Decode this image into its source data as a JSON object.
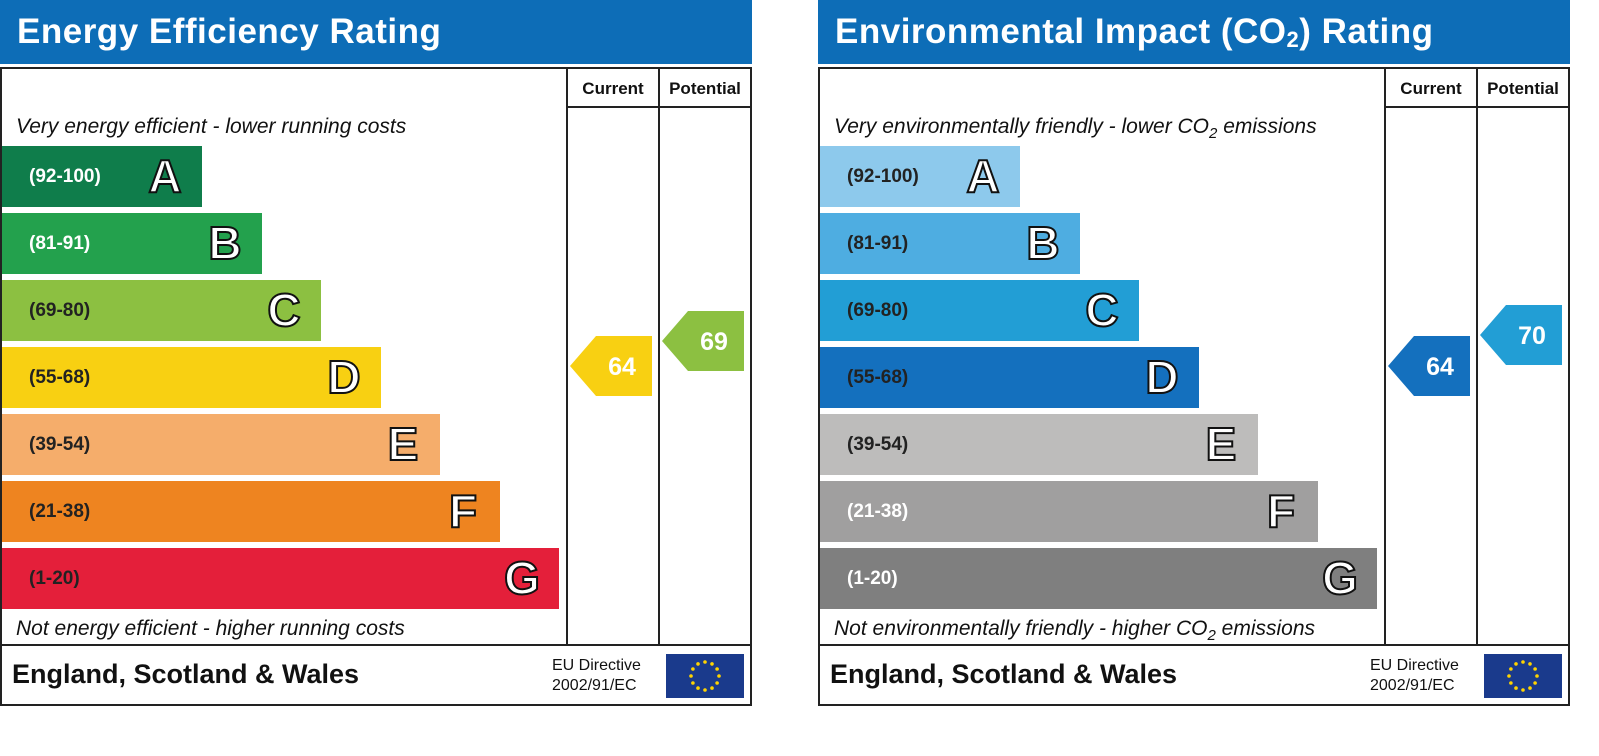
{
  "chart_data": [
    {
      "type": "bar",
      "title": "Energy Efficiency Rating",
      "columns": [
        "Current",
        "Potential"
      ],
      "top_caption": "Very energy efficient - lower running costs",
      "bottom_caption": "Not energy efficient - higher running costs",
      "bands": [
        {
          "letter": "A",
          "range": "(92-100)",
          "color": "#0f7d4b",
          "text_color": "#ffffff"
        },
        {
          "letter": "B",
          "range": "(81-91)",
          "color": "#23a14d",
          "text_color": "#ffffff"
        },
        {
          "letter": "C",
          "range": "(69-80)",
          "color": "#8cc041",
          "text_color": "#222222"
        },
        {
          "letter": "D",
          "range": "(55-68)",
          "color": "#f8d012",
          "text_color": "#222222"
        },
        {
          "letter": "E",
          "range": "(39-54)",
          "color": "#f5ad6b",
          "text_color": "#222222"
        },
        {
          "letter": "F",
          "range": "(21-38)",
          "color": "#ee8420",
          "text_color": "#222222"
        },
        {
          "letter": "G",
          "range": "(1-20)",
          "color": "#e41f3a",
          "text_color": "#222222"
        }
      ],
      "current": {
        "value": 64,
        "color": "#f8d012"
      },
      "potential": {
        "value": 69,
        "color": "#8cc041"
      },
      "footer": "England, Scotland & Wales",
      "directive": [
        "EU Directive",
        "2002/91/EC"
      ]
    },
    {
      "type": "bar",
      "title_parts": [
        "Environmental Impact (CO",
        "2",
        ") Rating"
      ],
      "columns": [
        "Current",
        "Potential"
      ],
      "top_caption_parts": [
        "Very environmentally friendly - lower CO",
        "2",
        " emissions"
      ],
      "bottom_caption_parts": [
        "Not environmentally friendly - higher CO",
        "2",
        " emissions"
      ],
      "bands": [
        {
          "letter": "A",
          "range": "(92-100)",
          "color": "#8dc9ec",
          "text_color": "#222222"
        },
        {
          "letter": "B",
          "range": "(81-91)",
          "color": "#4ead e1",
          "text_color": "#222222"
        },
        {
          "letter": "C",
          "range": "(69-80)",
          "color": "#229ed5",
          "text_color": "#222222"
        },
        {
          "letter": "D",
          "range": "(55-68)",
          "color": "#1470be",
          "text_color": "#222222"
        },
        {
          "letter": "E",
          "range": "(39-54)",
          "color": "#bdbcbb",
          "text_color": "#222222"
        },
        {
          "letter": "F",
          "range": "(21-38)",
          "color": "#a09f9f",
          "text_color": "#ffffff"
        },
        {
          "letter": "G",
          "range": "(1-20)",
          "color": "#7f7f7f",
          "text_color": "#ffffff"
        }
      ],
      "current": {
        "value": 64,
        "color": "#1470be"
      },
      "potential": {
        "value": 70,
        "color": "#229ed5"
      },
      "footer": "England, Scotland & Wales",
      "directive": [
        "EU Directive",
        "2002/91/EC"
      ]
    }
  ]
}
